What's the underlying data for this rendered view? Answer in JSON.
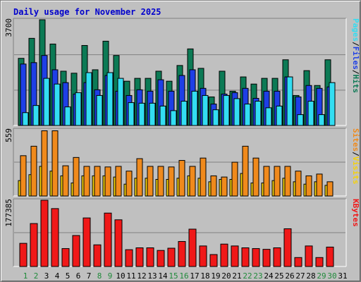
{
  "title": "Daily usage for November 2025",
  "colors": {
    "hits": "#0c7a55",
    "files": "#1e3fe6",
    "pages": "#33ddf2",
    "visits": "#f5d20a",
    "sites": "#f08a1c",
    "kbytes": "#f01818",
    "plot_bg": "#c0c0c0",
    "weekend_day": "#1f8a3a",
    "weekday_day": "#000000"
  },
  "chart_data": [
    {
      "type": "bar",
      "title": "Daily usage for November 2025",
      "ymax_label": "3700",
      "right_labels": [
        "Pages",
        "/",
        "Files",
        "/",
        "Hits"
      ],
      "ylim": [
        0,
        3700
      ],
      "categories": [
        "1",
        "2",
        "3",
        "4",
        "5",
        "6",
        "7",
        "8",
        "9",
        "10",
        "11",
        "12",
        "13",
        "14",
        "15",
        "16",
        "17",
        "18",
        "19",
        "20",
        "21",
        "22",
        "23",
        "24",
        "25",
        "26",
        "27",
        "28",
        "29",
        "30",
        "31"
      ],
      "series": [
        {
          "name": "Hits",
          "values": [
            2350,
            3050,
            3700,
            2850,
            1900,
            1830,
            2800,
            1950,
            2950,
            2450,
            1550,
            1650,
            1650,
            1900,
            1550,
            2100,
            2680,
            2000,
            1000,
            1900,
            1200,
            1700,
            1450,
            1650,
            1650,
            2300,
            1050,
            1920,
            1400,
            2300,
            0
          ]
        },
        {
          "name": "Files",
          "values": [
            2150,
            2200,
            2450,
            1950,
            1500,
            1100,
            1500,
            1250,
            1750,
            1200,
            1050,
            1250,
            1200,
            1600,
            1200,
            1750,
            1950,
            1300,
            750,
            1100,
            1150,
            1300,
            950,
            1200,
            1200,
            1700,
            1000,
            1400,
            1300,
            1350,
            0
          ]
        },
        {
          "name": "Pages",
          "values": [
            450,
            700,
            1650,
            1450,
            650,
            1150,
            1850,
            1050,
            1850,
            1650,
            800,
            780,
            780,
            680,
            520,
            850,
            1200,
            1050,
            550,
            1050,
            940,
            750,
            850,
            620,
            680,
            1700,
            380,
            850,
            380,
            1500,
            0
          ]
        }
      ]
    },
    {
      "type": "bar",
      "ymax_label": "559",
      "right_labels": [
        "Sites",
        "/",
        "Visits"
      ],
      "ylim": [
        0,
        559
      ],
      "categories": [
        "1",
        "2",
        "3",
        "4",
        "5",
        "6",
        "7",
        "8",
        "9",
        "10",
        "11",
        "12",
        "13",
        "14",
        "15",
        "16",
        "17",
        "18",
        "19",
        "20",
        "21",
        "22",
        "23",
        "24",
        "25",
        "26",
        "27",
        "28",
        "29",
        "30",
        "31"
      ],
      "series": [
        {
          "name": "Visits",
          "values": [
            130,
            180,
            250,
            210,
            170,
            110,
            170,
            170,
            170,
            160,
            100,
            150,
            150,
            140,
            140,
            150,
            170,
            150,
            120,
            140,
            140,
            190,
            110,
            110,
            130,
            150,
            120,
            100,
            120,
            90,
            0
          ]
        },
        {
          "name": "Sites",
          "values": [
            340,
            420,
            550,
            550,
            255,
            325,
            250,
            250,
            245,
            250,
            210,
            315,
            250,
            250,
            245,
            300,
            250,
            320,
            170,
            160,
            285,
            420,
            320,
            250,
            250,
            250,
            210,
            170,
            185,
            120,
            0
          ]
        }
      ]
    },
    {
      "type": "bar",
      "ymax_label": "177385",
      "right_labels": [
        "KBytes"
      ],
      "ylim": [
        0,
        177385
      ],
      "categories": [
        "1",
        "2",
        "3",
        "4",
        "5",
        "6",
        "7",
        "8",
        "9",
        "10",
        "11",
        "12",
        "13",
        "14",
        "15",
        "16",
        "17",
        "18",
        "19",
        "20",
        "21",
        "22",
        "23",
        "24",
        "25",
        "26",
        "27",
        "28",
        "29",
        "30",
        "31"
      ],
      "series": [
        {
          "name": "KBytes",
          "values": [
            62000,
            115000,
            177385,
            155000,
            48000,
            83000,
            130000,
            58000,
            143000,
            125000,
            45000,
            50000,
            50000,
            43000,
            49000,
            67000,
            100000,
            55000,
            32000,
            60000,
            55000,
            50000,
            48000,
            46000,
            50000,
            101000,
            24000,
            55000,
            24000,
            52000,
            0
          ]
        }
      ]
    }
  ],
  "weekend_days": [
    "1",
    "2",
    "8",
    "9",
    "15",
    "16",
    "22",
    "23",
    "29",
    "30"
  ]
}
